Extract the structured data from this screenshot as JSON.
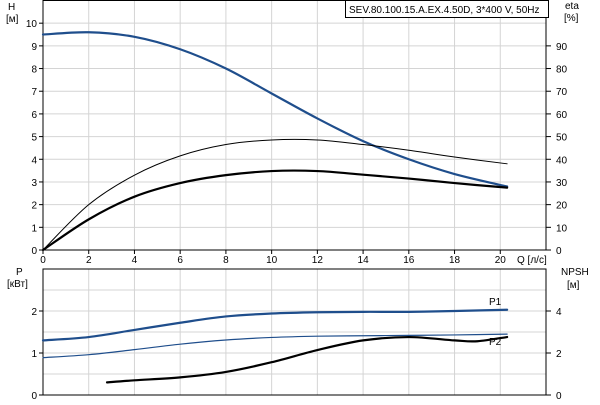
{
  "chart_data": [
    {
      "type": "line",
      "title": "SEV.80.100.15.A.EX.4.50D, 3*400 V, 50Hz",
      "xlabel": "Q [л/с]",
      "ylabel": "H",
      "ylabel_unit": "[м]",
      "y2label": "eta",
      "y2label_unit": "[%]",
      "xlim": [
        0,
        22
      ],
      "ylim": [
        0,
        11
      ],
      "y2lim": [
        0,
        110
      ],
      "x_ticks": [
        0,
        2,
        4,
        6,
        8,
        10,
        12,
        14,
        16,
        18,
        20
      ],
      "y_ticks": [
        0,
        1,
        2,
        3,
        4,
        5,
        6,
        7,
        8,
        9,
        10
      ],
      "y2_ticks": [
        0,
        10,
        20,
        30,
        40,
        50,
        60,
        70,
        80,
        90
      ],
      "grid": true,
      "series": [
        {
          "axis": "y",
          "color": "#1f4e8c",
          "width": 2.2,
          "x": [
            0,
            2,
            4,
            6,
            8,
            10,
            12,
            14,
            16,
            18,
            20.3
          ],
          "values": [
            9.5,
            9.6,
            9.4,
            8.85,
            8.0,
            6.9,
            5.8,
            4.8,
            4.0,
            3.35,
            2.8
          ]
        },
        {
          "axis": "y2",
          "color": "#000000",
          "width": 1,
          "x": [
            0,
            2,
            4,
            6,
            8,
            10,
            12,
            14,
            16,
            18,
            20.3
          ],
          "values": [
            0,
            20,
            33,
            41.5,
            46.5,
            48.5,
            48.5,
            46.5,
            44,
            41,
            38
          ]
        },
        {
          "axis": "y2",
          "color": "#000000",
          "width": 2.2,
          "x": [
            0,
            2,
            4,
            6,
            8,
            10,
            12,
            14,
            16,
            18,
            20.3
          ],
          "values": [
            0,
            13.5,
            23.5,
            29.5,
            33,
            34.8,
            34.8,
            33.2,
            31.5,
            29.5,
            27.5
          ]
        }
      ]
    },
    {
      "type": "line",
      "ylabel": "P",
      "ylabel_unit": "[кВт]",
      "y2label": "NPSH",
      "y2label_unit": "[м]",
      "xlim": [
        0,
        22
      ],
      "ylim": [
        0,
        3
      ],
      "y2lim": [
        0,
        6
      ],
      "y_ticks": [
        0,
        1,
        2
      ],
      "y2_ticks": [
        0,
        2,
        4
      ],
      "grid": true,
      "series": [
        {
          "name": "P1",
          "axis": "y",
          "color": "#1f4e8c",
          "width": 2.2,
          "x": [
            0,
            2,
            4,
            6,
            8,
            10,
            12,
            14,
            16,
            18,
            20.3
          ],
          "values": [
            1.3,
            1.38,
            1.55,
            1.72,
            1.87,
            1.94,
            1.97,
            1.98,
            1.98,
            2.0,
            2.03
          ]
        },
        {
          "name": "P2",
          "axis": "y",
          "color": "#1f4e8c",
          "width": 1.2,
          "x": [
            0,
            2,
            4,
            6,
            8,
            10,
            12,
            14,
            16,
            18,
            20.3
          ],
          "values": [
            0.89,
            0.96,
            1.08,
            1.21,
            1.31,
            1.37,
            1.4,
            1.41,
            1.42,
            1.43,
            1.45
          ]
        },
        {
          "axis": "y2",
          "color": "#000000",
          "width": 2.2,
          "x": [
            2.8,
            4,
            6,
            8,
            10,
            12,
            14,
            16,
            18,
            19,
            20.3
          ],
          "values": [
            0.6,
            0.7,
            0.84,
            1.1,
            1.56,
            2.14,
            2.6,
            2.76,
            2.6,
            2.56,
            2.76
          ]
        }
      ]
    }
  ]
}
